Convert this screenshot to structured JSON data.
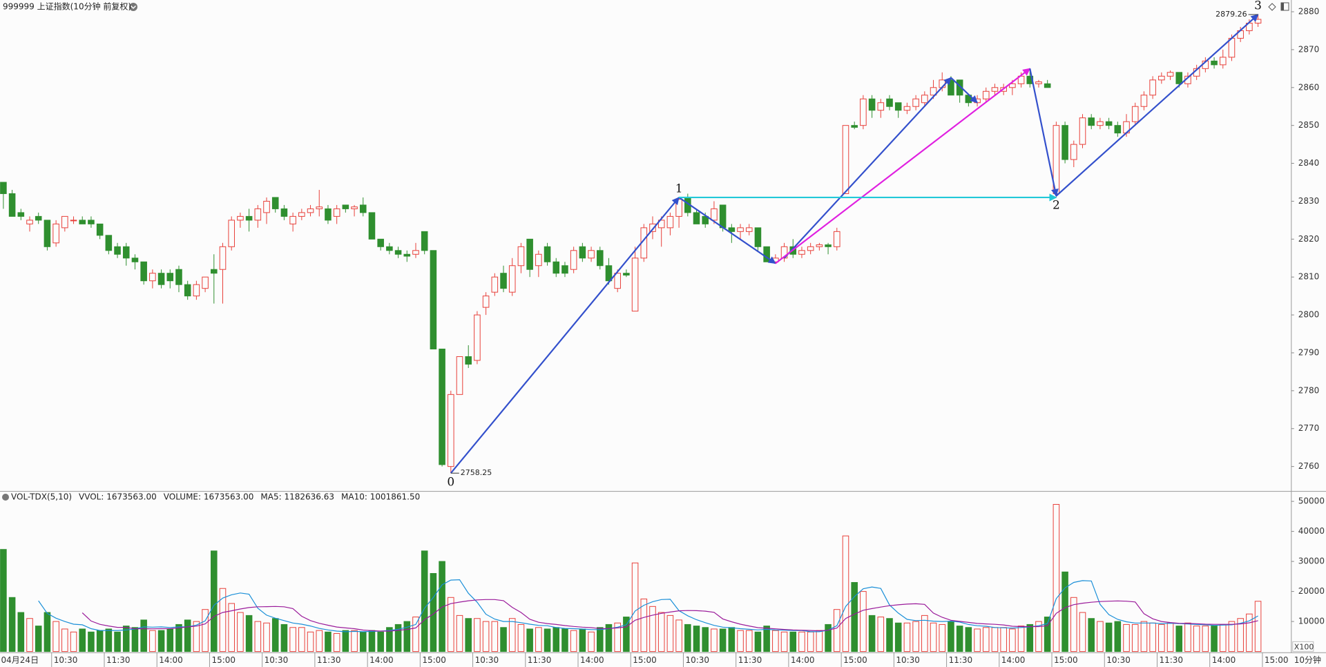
{
  "chart_data": {
    "type": "candlestick",
    "title": "999999 上证指数(10分钟 前复权)",
    "period_label": "10分钟",
    "categories": [
      "04月24日",
      null,
      null,
      null,
      null,
      null,
      "10:30",
      null,
      null,
      null,
      null,
      null,
      "11:30",
      null,
      null,
      null,
      null,
      null,
      "14:00",
      null,
      null,
      null,
      null,
      null,
      "15:00",
      null,
      null,
      null,
      null,
      null,
      "10:30",
      null,
      null,
      null,
      null,
      null,
      "11:30",
      null,
      null,
      null,
      null,
      null,
      "14:00",
      null,
      null,
      null,
      null,
      null,
      "15:00",
      null,
      null,
      null,
      null,
      null,
      "10:30",
      null,
      null,
      null,
      null,
      null,
      "11:30",
      null,
      null,
      null,
      null,
      null,
      "14:00",
      null,
      null,
      null,
      null,
      null,
      "15:00",
      null,
      null,
      null,
      null,
      null,
      "10:30",
      null,
      null,
      null,
      null,
      null,
      "11:30",
      null,
      null,
      null,
      null,
      null,
      "14:00",
      null,
      null,
      null,
      null,
      null,
      "15:00",
      null,
      null,
      null,
      null,
      null,
      "10:30",
      null,
      null,
      null,
      null,
      null,
      "11:30",
      null,
      null,
      null,
      null,
      null,
      "14:00",
      null,
      null,
      null,
      null,
      null,
      "15:00",
      null,
      null,
      null,
      null,
      null,
      "10:30",
      null,
      null,
      null,
      null,
      null,
      "11:30",
      null,
      null,
      null,
      null,
      null,
      "14:00",
      null,
      null,
      null,
      null,
      null
    ],
    "x_end_label": "15:00",
    "open": [
      2835,
      2832,
      2827,
      2824,
      2826,
      2825,
      2819,
      2823,
      2825,
      2825,
      2825,
      2824,
      2821,
      2818,
      2818,
      2815,
      2814,
      2809,
      2811,
      2811,
      2812,
      2808,
      2805,
      2807,
      2812,
      2812,
      2818,
      2825,
      2826,
      2825,
      2827,
      2831,
      2828,
      2824,
      2826,
      2827,
      2828,
      2828,
      2826,
      2829,
      2828,
      2829,
      2827,
      2820,
      2818,
      2817,
      2816,
      2816,
      2822,
      2817,
      2791,
      2760,
      2779,
      2789,
      2788,
      2802,
      2806,
      2811,
      2806,
      2813,
      2820,
      2813,
      2818,
      2814,
      2813,
      2812,
      2818,
      2815,
      2817,
      2813,
      2807,
      2811,
      2801,
      2815,
      2822,
      2823,
      2823,
      2826,
      2831,
      2827,
      2826,
      2825,
      2829,
      2823,
      2822,
      2822,
      2823,
      2818,
      2814,
      2815,
      2818,
      2816,
      2817,
      2818,
      2818.5,
      2818,
      2832,
      2850,
      2850,
      2857,
      2854,
      2857,
      2856,
      2854,
      2855,
      2856,
      2858,
      2860,
      2862,
      2862,
      2858,
      2856,
      2857,
      2859,
      2859,
      2860,
      2861,
      2863,
      2861,
      2861,
      2832,
      2850,
      2841,
      2845,
      2852,
      2850,
      2851,
      2850,
      2848,
      2851,
      2855,
      2858,
      2862,
      2863,
      2864,
      2861,
      2863,
      2865,
      2867,
      2866,
      2868,
      2873,
      2875,
      2877
    ],
    "high": [
      2835,
      2833,
      2828,
      2826,
      2827,
      2825,
      2825,
      2826,
      2826,
      2826,
      2826,
      2824,
      2821,
      2819,
      2819,
      2816,
      2814,
      2812,
      2812,
      2812,
      2813,
      2809,
      2809,
      2810,
      2816,
      2819,
      2826,
      2827,
      2828,
      2829,
      2831,
      2831,
      2829,
      2827,
      2828,
      2829,
      2833,
      2829,
      2829,
      2829,
      2829,
      2831,
      2827,
      2820,
      2819,
      2818,
      2817,
      2819,
      2822,
      2817,
      2791,
      2780,
      2789,
      2792,
      2801,
      2806,
      2811,
      2813,
      2815,
      2819,
      2820,
      2817,
      2819,
      2815,
      2814,
      2818,
      2819,
      2818,
      2818,
      2815,
      2812,
      2812,
      2818,
      2824,
      2826,
      2826,
      2827,
      2831,
      2832,
      2828,
      2827,
      2830,
      2829,
      2824,
      2824,
      2824,
      2823,
      2818,
      2816,
      2819,
      2820,
      2818,
      2819,
      2819,
      2819,
      2823,
      2850,
      2851,
      2858,
      2858,
      2857,
      2858,
      2856,
      2856,
      2858,
      2859,
      2862,
      2864,
      2863,
      2862,
      2858,
      2858,
      2860,
      2861,
      2861,
      2862,
      2864,
      2865,
      2862,
      2862,
      2851,
      2851,
      2846,
      2853,
      2853,
      2852,
      2852,
      2851,
      2853,
      2856,
      2859,
      2863,
      2864,
      2864.5,
      2864,
      2864,
      2866,
      2868,
      2868,
      2870,
      2874,
      2876,
      2878,
      2879.26
    ],
    "low": [
      2828,
      2826,
      2825,
      2822,
      2824,
      2817,
      2818,
      2822,
      2824,
      2824,
      2823,
      2820,
      2816,
      2815,
      2813,
      2812,
      2808,
      2807,
      2807,
      2807,
      2806,
      2804,
      2804,
      2806,
      2803,
      2803,
      2817,
      2823,
      2822,
      2823,
      2824,
      2827,
      2825,
      2822,
      2825,
      2826,
      2826,
      2824,
      2824,
      2827,
      2826,
      2826,
      2820,
      2817,
      2816,
      2815,
      2814,
      2815,
      2816,
      2791,
      2760,
      2758.25,
      2779,
      2786,
      2787,
      2800,
      2805,
      2806,
      2805,
      2811,
      2810,
      2810,
      2813,
      2810,
      2810,
      2811,
      2814,
      2814,
      2812,
      2808,
      2806,
      2810,
      2801,
      2814,
      2820,
      2818,
      2821,
      2823,
      2826,
      2824,
      2823,
      2824,
      2822,
      2819,
      2820,
      2821,
      2817,
      2814,
      2813.6,
      2814,
      2815,
      2815,
      2816,
      2817,
      2816,
      2817,
      2832,
      2849,
      2849,
      2852,
      2852,
      2854,
      2852,
      2853,
      2854,
      2855,
      2857,
      2859,
      2858,
      2856,
      2855,
      2855,
      2856,
      2858,
      2858,
      2858,
      2860,
      2860,
      2860,
      2860,
      2831,
      2840,
      2839,
      2844,
      2849,
      2849,
      2849,
      2847,
      2847,
      2850,
      2854,
      2857,
      2861,
      2862,
      2860,
      2860,
      2862,
      2864,
      2865,
      2865,
      2867,
      2872,
      2874,
      2876
    ],
    "close": [
      2832,
      2826,
      2826,
      2825,
      2825,
      2818,
      2824,
      2826,
      2825,
      2824,
      2824,
      2821,
      2817,
      2816,
      2815,
      2814,
      2809,
      2811,
      2808,
      2809,
      2808,
      2805,
      2808,
      2810,
      2811,
      2818,
      2825,
      2826,
      2825,
      2828,
      2830,
      2828,
      2826,
      2826,
      2827,
      2828,
      2828.5,
      2825,
      2828,
      2828,
      2828.5,
      2827,
      2820,
      2818,
      2817,
      2816,
      2815.5,
      2817,
      2817,
      2791,
      2760.5,
      2779,
      2789,
      2787,
      2800,
      2805,
      2810,
      2807,
      2813,
      2818,
      2812,
      2816,
      2814,
      2811,
      2811,
      2817,
      2815,
      2817,
      2813,
      2809,
      2811,
      2810.5,
      2815,
      2823,
      2824,
      2825,
      2826,
      2830.5,
      2827,
      2824,
      2824,
      2828,
      2823,
      2822,
      2823,
      2823,
      2818,
      2814,
      2815,
      2818,
      2816,
      2817,
      2818,
      2818.5,
      2818,
      2822,
      2850,
      2849.5,
      2857,
      2854,
      2856,
      2855,
      2854,
      2855,
      2857,
      2858,
      2860,
      2862,
      2858,
      2858,
      2856,
      2857,
      2859,
      2860,
      2860,
      2861,
      2863,
      2861,
      2861.5,
      2860,
      2850,
      2841,
      2845,
      2852,
      2850,
      2851,
      2850,
      2848,
      2851,
      2855,
      2858,
      2862,
      2863,
      2864,
      2861,
      2863,
      2865,
      2867,
      2866,
      2868,
      2873,
      2875,
      2877,
      2878
    ],
    "up_color": "#e8403a",
    "down_color": "#2f8f2f",
    "ylim": [
      2753.7,
      2883.1
    ],
    "yticks": [
      2760,
      2770,
      2780,
      2790,
      2800,
      2810,
      2820,
      2830,
      2840,
      2850,
      2860,
      2870,
      2880
    ],
    "price_marks": [
      {
        "bar": 51,
        "price": 2758.25
      },
      {
        "bar": 143,
        "price": 2879.26
      }
    ],
    "wave_labels": [
      {
        "label": "0",
        "bar": 51,
        "price": 2758.25,
        "position": "below"
      },
      {
        "label": "1",
        "bar": 77,
        "price": 2831,
        "position": "above"
      },
      {
        "label": "2",
        "bar": 120,
        "price": 2831.4,
        "position": "below"
      },
      {
        "label": "3",
        "bar": 143,
        "price": 2879.26,
        "position": "above"
      }
    ],
    "lines": [
      {
        "from": [
          51,
          2758.25
        ],
        "to": [
          77,
          2831
        ],
        "color": "#3350cc"
      },
      {
        "from": [
          77,
          2831
        ],
        "to": [
          88,
          2813.6
        ],
        "color": "#3350cc"
      },
      {
        "from": [
          89,
          2815
        ],
        "to": [
          108,
          2862.6
        ],
        "color": "#3350cc"
      },
      {
        "from": [
          108,
          2862.6
        ],
        "to": [
          111,
          2856
        ],
        "color": "#3350cc"
      },
      {
        "from": [
          88,
          2813.6
        ],
        "to": [
          117,
          2865
        ],
        "color": "#e020e0"
      },
      {
        "from": [
          117,
          2865
        ],
        "to": [
          120,
          2831.4
        ],
        "color": "#3350cc"
      },
      {
        "from": [
          77,
          2831
        ],
        "to": [
          120,
          2831
        ],
        "color": "#22c8d8"
      },
      {
        "from": [
          120,
          2831.4
        ],
        "to": [
          143,
          2879.26
        ],
        "color": "#3350cc"
      }
    ],
    "volume": {
      "legend": [
        {
          "text": "VOL-TDX(5,10)",
          "color": "#333333"
        },
        {
          "text": "VVOL: 1673563.00",
          "color": "#333333"
        },
        {
          "text": "VOLUME: 1673563.00",
          "color": "#1a7fd0"
        },
        {
          "text": "MA5: 1182636.63",
          "color": "#1a7fd0"
        },
        {
          "text": "MA10: 1001861.50",
          "color": "#9a1a9a"
        }
      ],
      "values": [
        34000,
        18000,
        13000,
        11000,
        8500,
        13000,
        10000,
        7500,
        6500,
        7500,
        6500,
        7000,
        7500,
        6500,
        8500,
        8000,
        10500,
        7000,
        7000,
        7500,
        9000,
        10500,
        10000,
        14000,
        33500,
        21000,
        16000,
        13000,
        12000,
        10000,
        9500,
        11000,
        9000,
        8000,
        8000,
        6500,
        7000,
        6500,
        6000,
        7000,
        7000,
        6500,
        7000,
        6500,
        8000,
        9000,
        10000,
        11500,
        33500,
        26000,
        30000,
        18000,
        12000,
        11000,
        11000,
        10000,
        10000,
        8000,
        11000,
        9000,
        7500,
        8000,
        7500,
        8000,
        7500,
        7000,
        7500,
        6500,
        8000,
        9000,
        9500,
        11500,
        29500,
        17500,
        15000,
        13000,
        12000,
        10500,
        9000,
        8500,
        8000,
        7500,
        7500,
        8000,
        7000,
        7000,
        6500,
        8500,
        7000,
        6500,
        6500,
        6500,
        6500,
        7000,
        9000,
        14000,
        38500,
        23000,
        20000,
        12000,
        11500,
        11000,
        9500,
        9500,
        10000,
        12000,
        9500,
        9000,
        10000,
        8500,
        8000,
        7500,
        8000,
        8000,
        8000,
        7500,
        8500,
        9000,
        10000,
        11500,
        49000,
        26500,
        18000,
        13000,
        11000,
        10000,
        9500,
        10000,
        9000,
        9000,
        10000,
        9500,
        9000,
        9500,
        8500,
        9500,
        8500,
        8500,
        8500,
        9000,
        10000,
        11000,
        12500,
        16735.63
      ],
      "ma": [
        {
          "period": 5,
          "color": "#1a8fd8"
        },
        {
          "period": 10,
          "color": "#9a1a9a"
        }
      ],
      "ylim": [
        -400,
        53100
      ],
      "yticks": [
        10000,
        20000,
        30000,
        40000,
        50000
      ],
      "unit_label": "X100"
    }
  }
}
